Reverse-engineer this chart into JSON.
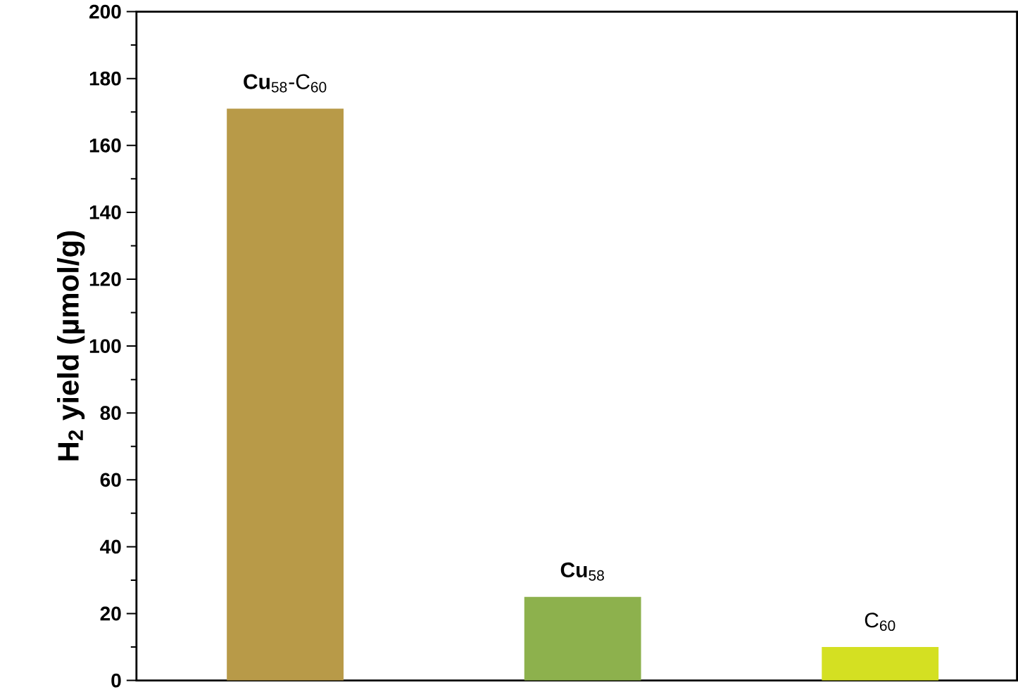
{
  "chart_data": {
    "type": "bar",
    "ylabel": "H$_{2}$ yield (µmol/g)",
    "categories": [
      "**Cu**$_{58}$-C$_{60}$",
      "**Cu**$_{58}$",
      "C$_{60}$"
    ],
    "values": [
      171,
      25,
      10
    ],
    "colors": [
      "#b89a48",
      "#8db14d",
      "#d4e022"
    ],
    "ylim": [
      0,
      200
    ],
    "yticks": [
      0,
      20,
      40,
      60,
      80,
      100,
      120,
      140,
      160,
      180,
      200
    ]
  }
}
